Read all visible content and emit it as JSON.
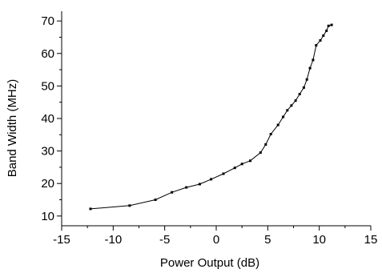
{
  "chart_data": {
    "type": "line",
    "xlabel": "Power Output (dB)",
    "ylabel": "Band Width (MHz)",
    "xlim": [
      -15,
      15
    ],
    "ylim": [
      7,
      73
    ],
    "xticks": [
      -15,
      -10,
      -5,
      0,
      5,
      10,
      15
    ],
    "xtick_labels": [
      "-15",
      "-10",
      "-5",
      "0",
      "5",
      "10",
      "15"
    ],
    "yticks": [
      10,
      20,
      30,
      40,
      50,
      60,
      70
    ],
    "ytick_labels": [
      "10",
      "20",
      "30",
      "40",
      "50",
      "60",
      "70"
    ],
    "grid": false,
    "series": [
      {
        "x": [
          -12.2,
          -8.4,
          -5.9,
          -4.3,
          -2.9,
          -1.6,
          -0.5,
          0.7,
          1.8,
          2.5,
          3.3,
          4.3,
          4.8,
          5.3,
          6.0,
          6.5,
          6.9,
          7.3,
          7.7,
          8.1,
          8.5,
          8.8,
          9.1,
          9.4,
          9.7,
          10.1,
          10.4,
          10.7,
          10.9,
          11.2
        ],
        "y": [
          12.2,
          13.2,
          15.0,
          17.3,
          18.8,
          19.8,
          21.3,
          23.0,
          24.8,
          26.0,
          27.0,
          29.5,
          32.0,
          35.2,
          38.0,
          40.5,
          42.5,
          44.0,
          45.5,
          47.5,
          49.5,
          52.0,
          55.5,
          58.0,
          62.5,
          64.0,
          65.5,
          67.0,
          68.5,
          68.8
        ]
      }
    ]
  }
}
